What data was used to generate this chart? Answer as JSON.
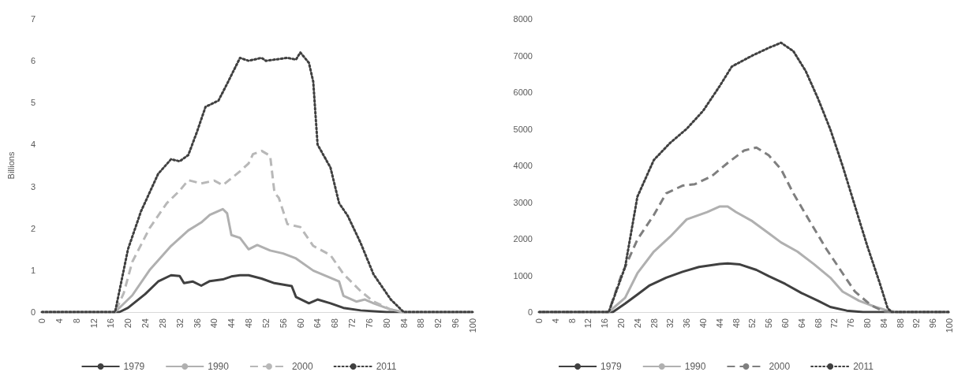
{
  "chart_data": [
    {
      "type": "line",
      "ylabel": "Billions",
      "xlim": [
        0,
        100
      ],
      "xticks": [
        0,
        4,
        8,
        12,
        16,
        20,
        24,
        28,
        32,
        36,
        40,
        44,
        48,
        52,
        56,
        60,
        64,
        68,
        72,
        76,
        80,
        84,
        88,
        92,
        96,
        100
      ],
      "ylim": [
        0,
        7
      ],
      "yticks": [
        0,
        1,
        2,
        3,
        4,
        5,
        6,
        7
      ],
      "grid": false,
      "legend": "bottom",
      "marker": "none",
      "series": [
        {
          "name": "1979",
          "color": "#404040",
          "line_style": "solid",
          "x": [
            0,
            18,
            20,
            24,
            27,
            30,
            32,
            33,
            35,
            37,
            39,
            42,
            44,
            46,
            48,
            51,
            54,
            58,
            59,
            62,
            64,
            67,
            70,
            74,
            80,
            100
          ],
          "values": [
            0,
            0,
            0.1,
            0.43,
            0.73,
            0.88,
            0.86,
            0.69,
            0.73,
            0.63,
            0.74,
            0.78,
            0.85,
            0.88,
            0.88,
            0.8,
            0.69,
            0.62,
            0.36,
            0.21,
            0.3,
            0.21,
            0.1,
            0.04,
            0,
            0
          ]
        },
        {
          "name": "1990",
          "color": "#b0b0b0",
          "line_style": "solid",
          "x": [
            0,
            17,
            21,
            25,
            30,
            34,
            37,
            39,
            42,
            43,
            44,
            46,
            48,
            50,
            53,
            56,
            59,
            63,
            69,
            70,
            73,
            75,
            77,
            81,
            84,
            100
          ],
          "values": [
            0,
            0,
            0.4,
            1.0,
            1.58,
            1.95,
            2.14,
            2.32,
            2.46,
            2.36,
            1.84,
            1.77,
            1.5,
            1.6,
            1.47,
            1.4,
            1.28,
            0.99,
            0.73,
            0.39,
            0.25,
            0.3,
            0.21,
            0.06,
            0,
            0
          ]
        },
        {
          "name": "2000",
          "color": "#b8b8b8",
          "line_style": "dashed",
          "x": [
            0,
            17,
            19,
            21,
            25,
            29,
            32,
            34,
            37,
            40,
            42,
            46,
            48,
            49,
            51,
            53,
            54,
            55,
            57,
            60,
            63,
            67,
            70,
            74,
            77,
            81,
            84,
            100
          ],
          "values": [
            0,
            0,
            0.45,
            1.2,
            2.0,
            2.6,
            2.9,
            3.15,
            3.07,
            3.14,
            3.03,
            3.36,
            3.55,
            3.77,
            3.85,
            3.73,
            2.85,
            2.73,
            2.1,
            2.03,
            1.58,
            1.36,
            0.91,
            0.5,
            0.25,
            0.06,
            0,
            0
          ]
        },
        {
          "name": "2011",
          "color": "#404040",
          "line_style": "dotted",
          "x": [
            0,
            17,
            20,
            23,
            25,
            27,
            30,
            32,
            34,
            36,
            38,
            41,
            43,
            46,
            48,
            51,
            52,
            57,
            59,
            60,
            62,
            63,
            64,
            67,
            69,
            71,
            74,
            77,
            81,
            84,
            100
          ],
          "values": [
            0,
            0,
            1.5,
            2.4,
            2.85,
            3.3,
            3.65,
            3.6,
            3.75,
            4.3,
            4.9,
            5.05,
            5.45,
            6.07,
            6.0,
            6.07,
            6.0,
            6.07,
            6.03,
            6.2,
            5.95,
            5.5,
            4.0,
            3.45,
            2.6,
            2.3,
            1.65,
            0.9,
            0.3,
            0,
            0
          ]
        }
      ]
    },
    {
      "type": "line",
      "xlim": [
        0,
        100
      ],
      "xticks": [
        0,
        4,
        8,
        12,
        16,
        20,
        24,
        28,
        32,
        36,
        40,
        44,
        48,
        52,
        56,
        60,
        64,
        68,
        72,
        76,
        80,
        84,
        88,
        92,
        96,
        100
      ],
      "ylim": [
        0,
        8000
      ],
      "yticks": [
        0,
        1000,
        2000,
        3000,
        4000,
        5000,
        6000,
        7000,
        8000
      ],
      "grid": false,
      "legend": "bottom",
      "marker": "none",
      "series": [
        {
          "name": "1979",
          "color": "#404040",
          "line_style": "solid",
          "x": [
            0,
            18,
            21,
            24,
            27,
            31,
            35,
            39,
            44,
            46,
            49,
            53,
            56,
            60,
            64,
            68,
            71,
            75,
            79,
            100
          ],
          "values": [
            0,
            0,
            230,
            480,
            730,
            940,
            1100,
            1230,
            1310,
            1330,
            1300,
            1150,
            980,
            770,
            520,
            310,
            140,
            40,
            0,
            0
          ]
        },
        {
          "name": "1990",
          "color": "#b0b0b0",
          "line_style": "solid",
          "x": [
            0,
            17,
            21,
            24,
            28,
            32,
            36,
            41,
            44,
            46,
            48,
            52,
            56,
            59,
            63,
            67,
            71,
            74,
            78,
            82,
            85,
            88,
            100
          ],
          "values": [
            0,
            0,
            390,
            1060,
            1650,
            2060,
            2530,
            2730,
            2880,
            2880,
            2730,
            2480,
            2150,
            1900,
            1650,
            1310,
            940,
            560,
            310,
            140,
            40,
            0,
            0
          ]
        },
        {
          "name": "2000",
          "color": "#7f7f7f",
          "line_style": "dashed",
          "x": [
            0,
            17,
            20,
            24,
            28,
            31,
            35,
            38,
            42,
            46,
            50,
            53,
            56,
            59,
            62,
            66,
            70,
            74,
            77,
            81,
            84,
            86,
            100
          ],
          "values": [
            0,
            0,
            980,
            1980,
            2650,
            3240,
            3450,
            3490,
            3700,
            4070,
            4410,
            4490,
            4280,
            3900,
            3240,
            2480,
            1730,
            1060,
            560,
            180,
            20,
            0,
            0
          ]
        },
        {
          "name": "2011",
          "color": "#404040",
          "line_style": "dotted",
          "x": [
            0,
            17,
            21,
            24,
            28,
            32,
            36,
            40,
            44,
            47,
            52,
            56,
            59,
            62,
            65,
            68,
            71,
            74,
            77,
            80,
            83,
            85,
            86,
            100
          ],
          "values": [
            0,
            0,
            1230,
            3150,
            4150,
            4620,
            5000,
            5490,
            6160,
            6700,
            7000,
            7210,
            7350,
            7120,
            6580,
            5830,
            4990,
            3990,
            2900,
            1810,
            810,
            100,
            0,
            0
          ]
        }
      ]
    }
  ]
}
